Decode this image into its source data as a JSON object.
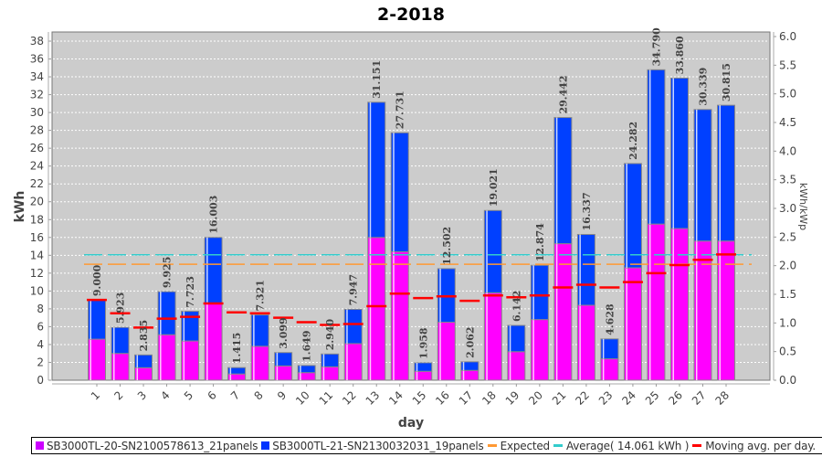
{
  "chart_data": {
    "type": "bar",
    "stacked": true,
    "title": "2-2018",
    "xlabel": "day",
    "ylabel": "kWh",
    "y2label": "kWh/kWp",
    "ylim": [
      0,
      38
    ],
    "y2lim": [
      0,
      6.0
    ],
    "yticks": [
      "0",
      "2",
      "4",
      "6",
      "8",
      "10",
      "12",
      "14",
      "16",
      "18",
      "20",
      "22",
      "24",
      "26",
      "28",
      "30",
      "32",
      "34",
      "36",
      "38"
    ],
    "y2ticks": [
      "0.0",
      "0.5",
      "1.0",
      "1.5",
      "2.0",
      "2.5",
      "3.0",
      "3.5",
      "4.0",
      "4.5",
      "5.0",
      "5.5",
      "6.0"
    ],
    "grid": true,
    "legend_position": "bottom",
    "categories": [
      "1",
      "2",
      "3",
      "4",
      "5",
      "6",
      "7",
      "8",
      "9",
      "10",
      "11",
      "12",
      "13",
      "14",
      "15",
      "16",
      "17",
      "18",
      "19",
      "20",
      "21",
      "22",
      "23",
      "24",
      "25",
      "26",
      "27",
      "28"
    ],
    "totals": [
      "9.000",
      "5.923",
      "2.835",
      "9.925",
      "7.723",
      "16.003",
      "1.415",
      "7.321",
      "3.099",
      "1.649",
      "2.940",
      "7.947",
      "31.151",
      "27.731",
      "1.958",
      "12.502",
      "2.062",
      "19.021",
      "6.142",
      "12.874",
      "29.442",
      "16.337",
      "4.628",
      "24.282",
      "34.790",
      "33.860",
      "30.339",
      "30.815"
    ],
    "series": [
      {
        "name": "SB3000TL-20-SN2100578613_21panels",
        "color": "#ff00ff",
        "values": [
          4.6,
          3.0,
          1.4,
          5.1,
          4.4,
          8.6,
          0.7,
          3.8,
          1.6,
          0.85,
          1.5,
          4.1,
          16.0,
          14.4,
          1.0,
          6.5,
          1.1,
          9.8,
          3.2,
          6.8,
          15.3,
          8.4,
          2.4,
          12.6,
          17.5,
          17.0,
          15.6,
          15.6
        ]
      },
      {
        "name": "SB3000TL-21-SN2130032031_19panels",
        "color": "#0040ff",
        "values": [
          4.4,
          2.923,
          1.435,
          4.825,
          3.323,
          7.403,
          0.715,
          3.521,
          1.499,
          0.799,
          1.44,
          3.847,
          15.151,
          13.331,
          0.958,
          6.002,
          0.962,
          9.221,
          2.942,
          6.074,
          14.142,
          7.937,
          2.228,
          11.682,
          17.29,
          16.86,
          14.739,
          15.215
        ]
      }
    ],
    "lines": [
      {
        "name": "Expected",
        "color": "#ff9933",
        "value": 13.0,
        "style": "dashed"
      },
      {
        "name": "Average( 14.061 kWh )",
        "color": "#33cccc",
        "value": 14.061,
        "style": "dashed"
      },
      {
        "name": "Moving avg. per day.",
        "color": "#ff0000",
        "style": "steps",
        "values": [
          9.0,
          7.5,
          5.9,
          6.9,
          7.1,
          8.6,
          7.6,
          7.5,
          7.0,
          6.5,
          6.2,
          6.3,
          8.3,
          9.7,
          9.2,
          9.4,
          8.9,
          9.5,
          9.3,
          9.5,
          10.4,
          10.7,
          10.4,
          11.0,
          12.0,
          12.9,
          13.5,
          14.1
        ]
      }
    ]
  },
  "legend": {
    "items": [
      {
        "label": "SB3000TL-20-SN2100578613_21panels",
        "kind": "box",
        "color": "#cc00ff"
      },
      {
        "label": "SB3000TL-21-SN2130032031_19panels",
        "kind": "box",
        "color": "#0033ff"
      },
      {
        "label": "Expected",
        "kind": "line",
        "color": "#ff9933"
      },
      {
        "label": "Average( 14.061 kWh )",
        "kind": "line",
        "color": "#33cccc"
      },
      {
        "label": "Moving avg. per day.",
        "kind": "line",
        "color": "#ff0000"
      }
    ]
  }
}
